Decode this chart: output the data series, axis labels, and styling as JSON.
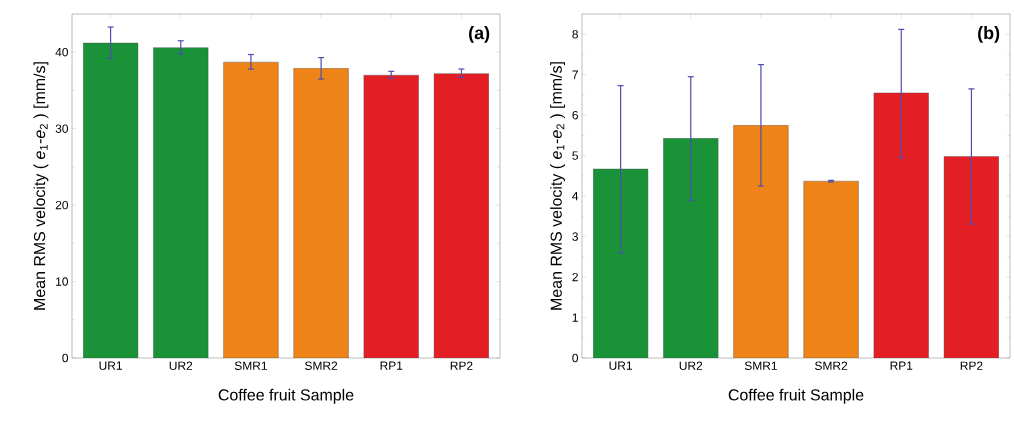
{
  "chart_data": [
    {
      "type": "bar",
      "annotations": [
        "(a)"
      ],
      "xlabel": "Coffee fruit Sample",
      "ylabel": "Mean RMS velocity ( *e*$_{1}$-*e*$_{2}$ )  [mm/s]",
      "categories": [
        "UR1",
        "UR2",
        "SMR1",
        "SMR2",
        "RP1",
        "RP2"
      ],
      "values": [
        41.2,
        40.6,
        38.7,
        37.9,
        37.0,
        37.2
      ],
      "errors": [
        [
          39.2,
          43.3
        ],
        [
          39.8,
          41.5
        ],
        [
          37.8,
          39.7
        ],
        [
          36.5,
          39.3
        ],
        [
          36.6,
          37.5
        ],
        [
          36.7,
          37.8
        ]
      ],
      "colors": [
        "#1a9238",
        "#1a9238",
        "#ee8417",
        "#ee8417",
        "#e31e24",
        "#e31e24"
      ],
      "ylim": [
        0,
        45
      ],
      "yticks": [
        0,
        10,
        20,
        30,
        40
      ],
      "grid": false
    },
    {
      "type": "bar",
      "annotations": [
        "(b)"
      ],
      "xlabel": "Coffee fruit Sample",
      "ylabel": "Mean RMS velocity ( *e*$_{1}$-*e*$_{2}$ )  [mm/s]",
      "categories": [
        "UR1",
        "UR2",
        "SMR1",
        "SMR2",
        "RP1",
        "RP2"
      ],
      "values": [
        4.67,
        5.43,
        5.75,
        4.37,
        6.55,
        4.98
      ],
      "errors": [
        [
          2.6,
          6.73
        ],
        [
          3.9,
          6.95
        ],
        [
          4.25,
          7.25
        ],
        [
          4.35,
          4.39
        ],
        [
          4.95,
          8.12
        ],
        [
          3.31,
          6.65
        ]
      ],
      "colors": [
        "#1a9238",
        "#1a9238",
        "#ee8417",
        "#ee8417",
        "#e31e24",
        "#e31e24"
      ],
      "ylim": [
        0,
        8.5
      ],
      "yticks": [
        0,
        1,
        2,
        3,
        4,
        5,
        6,
        7,
        8
      ],
      "grid": false
    }
  ]
}
